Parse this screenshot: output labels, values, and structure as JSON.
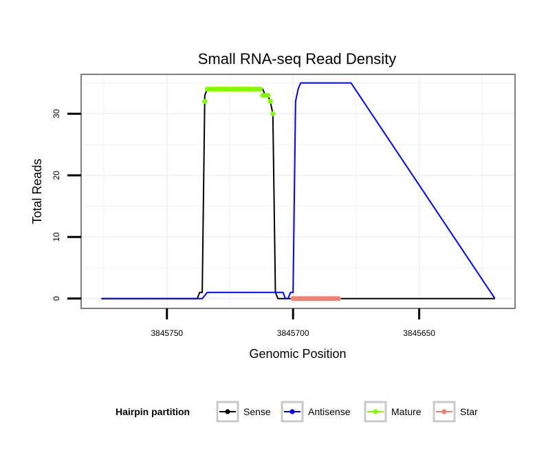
{
  "chart_data": {
    "type": "line",
    "title": "Small RNA-seq Read Density",
    "xlabel": "Genomic Position",
    "ylabel": "Total Reads",
    "x_reversed": true,
    "xlim": [
      3845784,
      3845612
    ],
    "ylim": [
      -1.6,
      36.4
    ],
    "x_ticks": [
      3845750,
      3845700,
      3845650
    ],
    "x_tick_labels": [
      "3845750",
      "3845700",
      "3845650"
    ],
    "y_ticks": [
      0,
      10,
      20,
      30
    ],
    "y_tick_labels": [
      "0",
      "10",
      "20",
      "30"
    ],
    "grid": true,
    "legend": {
      "title": "Hairpin partition",
      "position": "bottom",
      "entries": [
        {
          "label": "Sense",
          "color": "#000000"
        },
        {
          "label": "Antisense",
          "color": "#0000ff"
        },
        {
          "label": "Mature",
          "color": "#80ff00"
        },
        {
          "label": "Star",
          "color": "#f08070"
        }
      ]
    },
    "series": [
      {
        "name": "Sense",
        "kind": "line",
        "color": "#000000",
        "x": [
          3845776,
          3845738,
          3845737,
          3845736,
          3845735,
          3845734,
          3845733,
          3845732,
          3845731,
          3845730,
          3845729,
          3845728,
          3845727,
          3845726,
          3845725,
          3845724,
          3845723,
          3845722,
          3845721,
          3845720,
          3845719,
          3845718,
          3845717,
          3845716,
          3845715,
          3845714,
          3845713,
          3845712,
          3845711,
          3845710,
          3845709,
          3845708,
          3845707,
          3845706,
          3845705,
          3845704,
          3845703,
          3845702,
          3845701,
          3845700,
          3845620
        ],
        "y": [
          0,
          0,
          1,
          1,
          33,
          34,
          34,
          34,
          34,
          34,
          34,
          34,
          34,
          34,
          34,
          34,
          34,
          34,
          34,
          34,
          34,
          34,
          34,
          34,
          34,
          34,
          34,
          34,
          33,
          33,
          32,
          30,
          1,
          0,
          0,
          0,
          0,
          0,
          0,
          0,
          0
        ]
      },
      {
        "name": "Antisense",
        "kind": "line",
        "color": "#0000ff",
        "x": [
          3845776,
          3845736,
          3845734,
          3845733,
          3845732,
          3845731,
          3845730,
          3845729,
          3845728,
          3845727,
          3845726,
          3845725,
          3845724,
          3845723,
          3845722,
          3845721,
          3845720,
          3845719,
          3845718,
          3845717,
          3845716,
          3845715,
          3845714,
          3845713,
          3845712,
          3845711,
          3845710,
          3845709,
          3845708,
          3845707,
          3845706,
          3845705,
          3845704,
          3845703,
          3845702,
          3845701,
          3845700,
          3845699,
          3845698,
          3845697,
          3845696,
          3845695,
          3845694,
          3845693,
          3845692,
          3845691,
          3845690,
          3845689,
          3845688,
          3845687,
          3845686,
          3845685,
          3845684,
          3845683,
          3845682,
          3845681,
          3845680,
          3845679,
          3845678,
          3845677,
          3845620
        ],
        "y": [
          0,
          0,
          1,
          1,
          1,
          1,
          1,
          1,
          1,
          1,
          1,
          1,
          1,
          1,
          1,
          1,
          1,
          1,
          1,
          1,
          1,
          1,
          1,
          1,
          1,
          1,
          1,
          1,
          1,
          1,
          1,
          1,
          1,
          0,
          0,
          1,
          1,
          32,
          34,
          35,
          35,
          35,
          35,
          35,
          35,
          35,
          35,
          35,
          35,
          35,
          35,
          35,
          35,
          35,
          35,
          35,
          35,
          35,
          35,
          35,
          0
        ]
      },
      {
        "name": "Mature",
        "kind": "points",
        "color": "#80ff00",
        "x": [
          3845735,
          3845734,
          3845733,
          3845732,
          3845731,
          3845730,
          3845729,
          3845728,
          3845727,
          3845726,
          3845725,
          3845724,
          3845723,
          3845722,
          3845721,
          3845720,
          3845719,
          3845718,
          3845717,
          3845716,
          3845715,
          3845714,
          3845713,
          3845712,
          3845711,
          3845710,
          3845709,
          3845708
        ],
        "y": [
          32,
          34,
          34,
          34,
          34,
          34,
          34,
          34,
          34,
          34,
          34,
          34,
          34,
          34,
          34,
          34,
          34,
          34,
          34,
          34,
          34,
          34,
          34,
          33,
          33,
          33,
          32,
          30
        ]
      },
      {
        "name": "Star",
        "kind": "points",
        "color": "#f08070",
        "x": [
          3845700,
          3845699,
          3845698,
          3845697,
          3845696,
          3845695,
          3845694,
          3845693,
          3845692,
          3845691,
          3845690,
          3845689,
          3845688,
          3845687,
          3845686,
          3845685,
          3845684,
          3845683,
          3845682
        ],
        "y": [
          0,
          0,
          0,
          0,
          0,
          0,
          0,
          0,
          0,
          0,
          0,
          0,
          0,
          0,
          0,
          0,
          0,
          0,
          0
        ]
      }
    ]
  }
}
